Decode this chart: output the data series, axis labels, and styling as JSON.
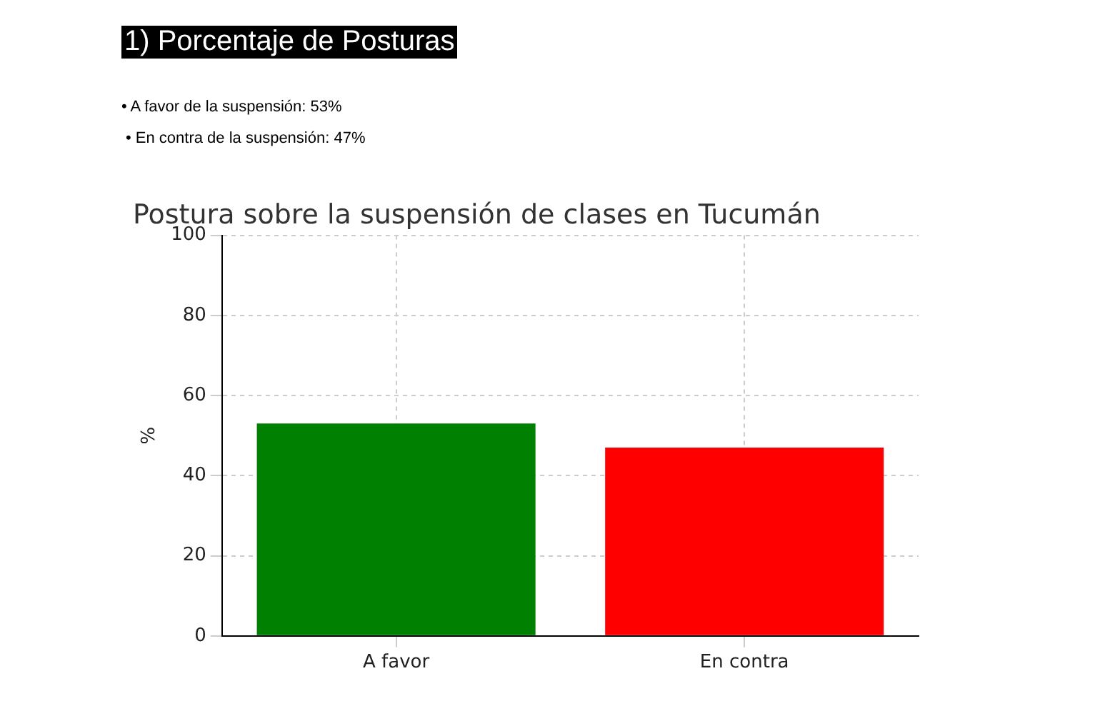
{
  "chart_data": {
    "type": "bar",
    "title": "Postura sobre la suspensión de clases en Tucumán",
    "ylabel": "%",
    "categories": [
      "A favor",
      "En contra"
    ],
    "values": [
      53,
      47
    ],
    "colors": [
      "#008000",
      "#ff0000"
    ],
    "ylim": [
      0,
      100
    ],
    "yticks": [
      0,
      20,
      40,
      60,
      80,
      100
    ],
    "grid": true,
    "legend": false,
    "annotations": [
      "1) Porcentaje de Posturas",
      "• A favor de la suspensión: 53%",
      "• En contra de la suspensión: 47%"
    ]
  }
}
